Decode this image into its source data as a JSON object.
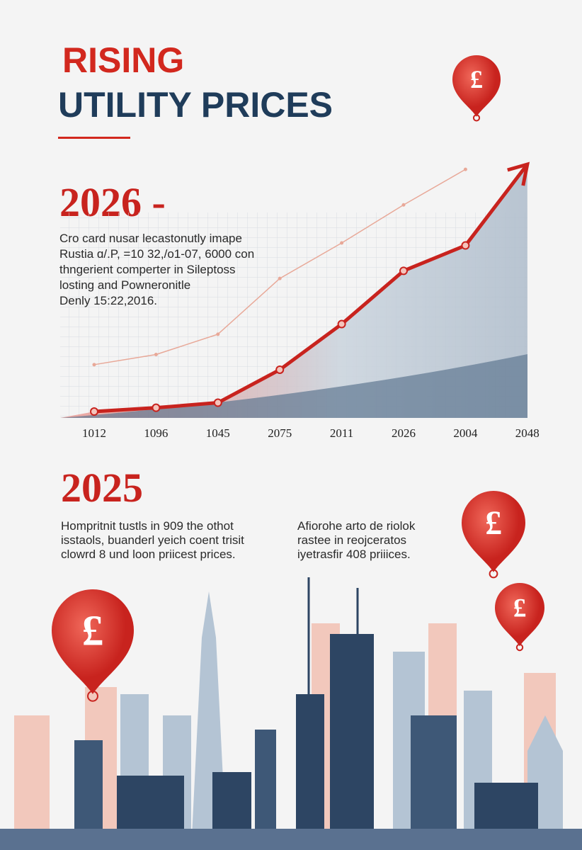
{
  "header": {
    "title_line1": "RISING",
    "title_line2": "UTILITY PRICES"
  },
  "section1": {
    "heading": "2026 -",
    "lines": [
      "Cro card nusar lecastonutly imape",
      "Rustia ɑ/.P, =10 32,/o1-07, 6000 con",
      "thngerient comperter in Sileptoss",
      "losting and Powneronitle",
      "Denly 15:22,2016."
    ]
  },
  "chart_data": {
    "type": "line",
    "categories": [
      "1012",
      "1096",
      "1045",
      "2075",
      "2011",
      "2026",
      "2004",
      "2048"
    ],
    "series": [
      {
        "name": null,
        "color": "#c8231e",
        "values": [
          2.5,
          4,
          6,
          19,
          37,
          58,
          68,
          100
        ]
      },
      {
        "name": null,
        "color": "#e8a898",
        "values": [
          21,
          25,
          33,
          55,
          69,
          84,
          98,
          null
        ]
      }
    ]
  },
  "section2": {
    "heading": "2025",
    "left_lines": [
      "Hompritnit tustls in 909 the othot",
      "isstaols, buanderl yeich coent trisit",
      "clowrd 8 und loon priicest prices."
    ],
    "right_lines": [
      "Afiorohe arto de riolok",
      "rastee in reojceratos",
      "iyetrasfir 408 priiices."
    ]
  },
  "balloon_symbol": "£"
}
